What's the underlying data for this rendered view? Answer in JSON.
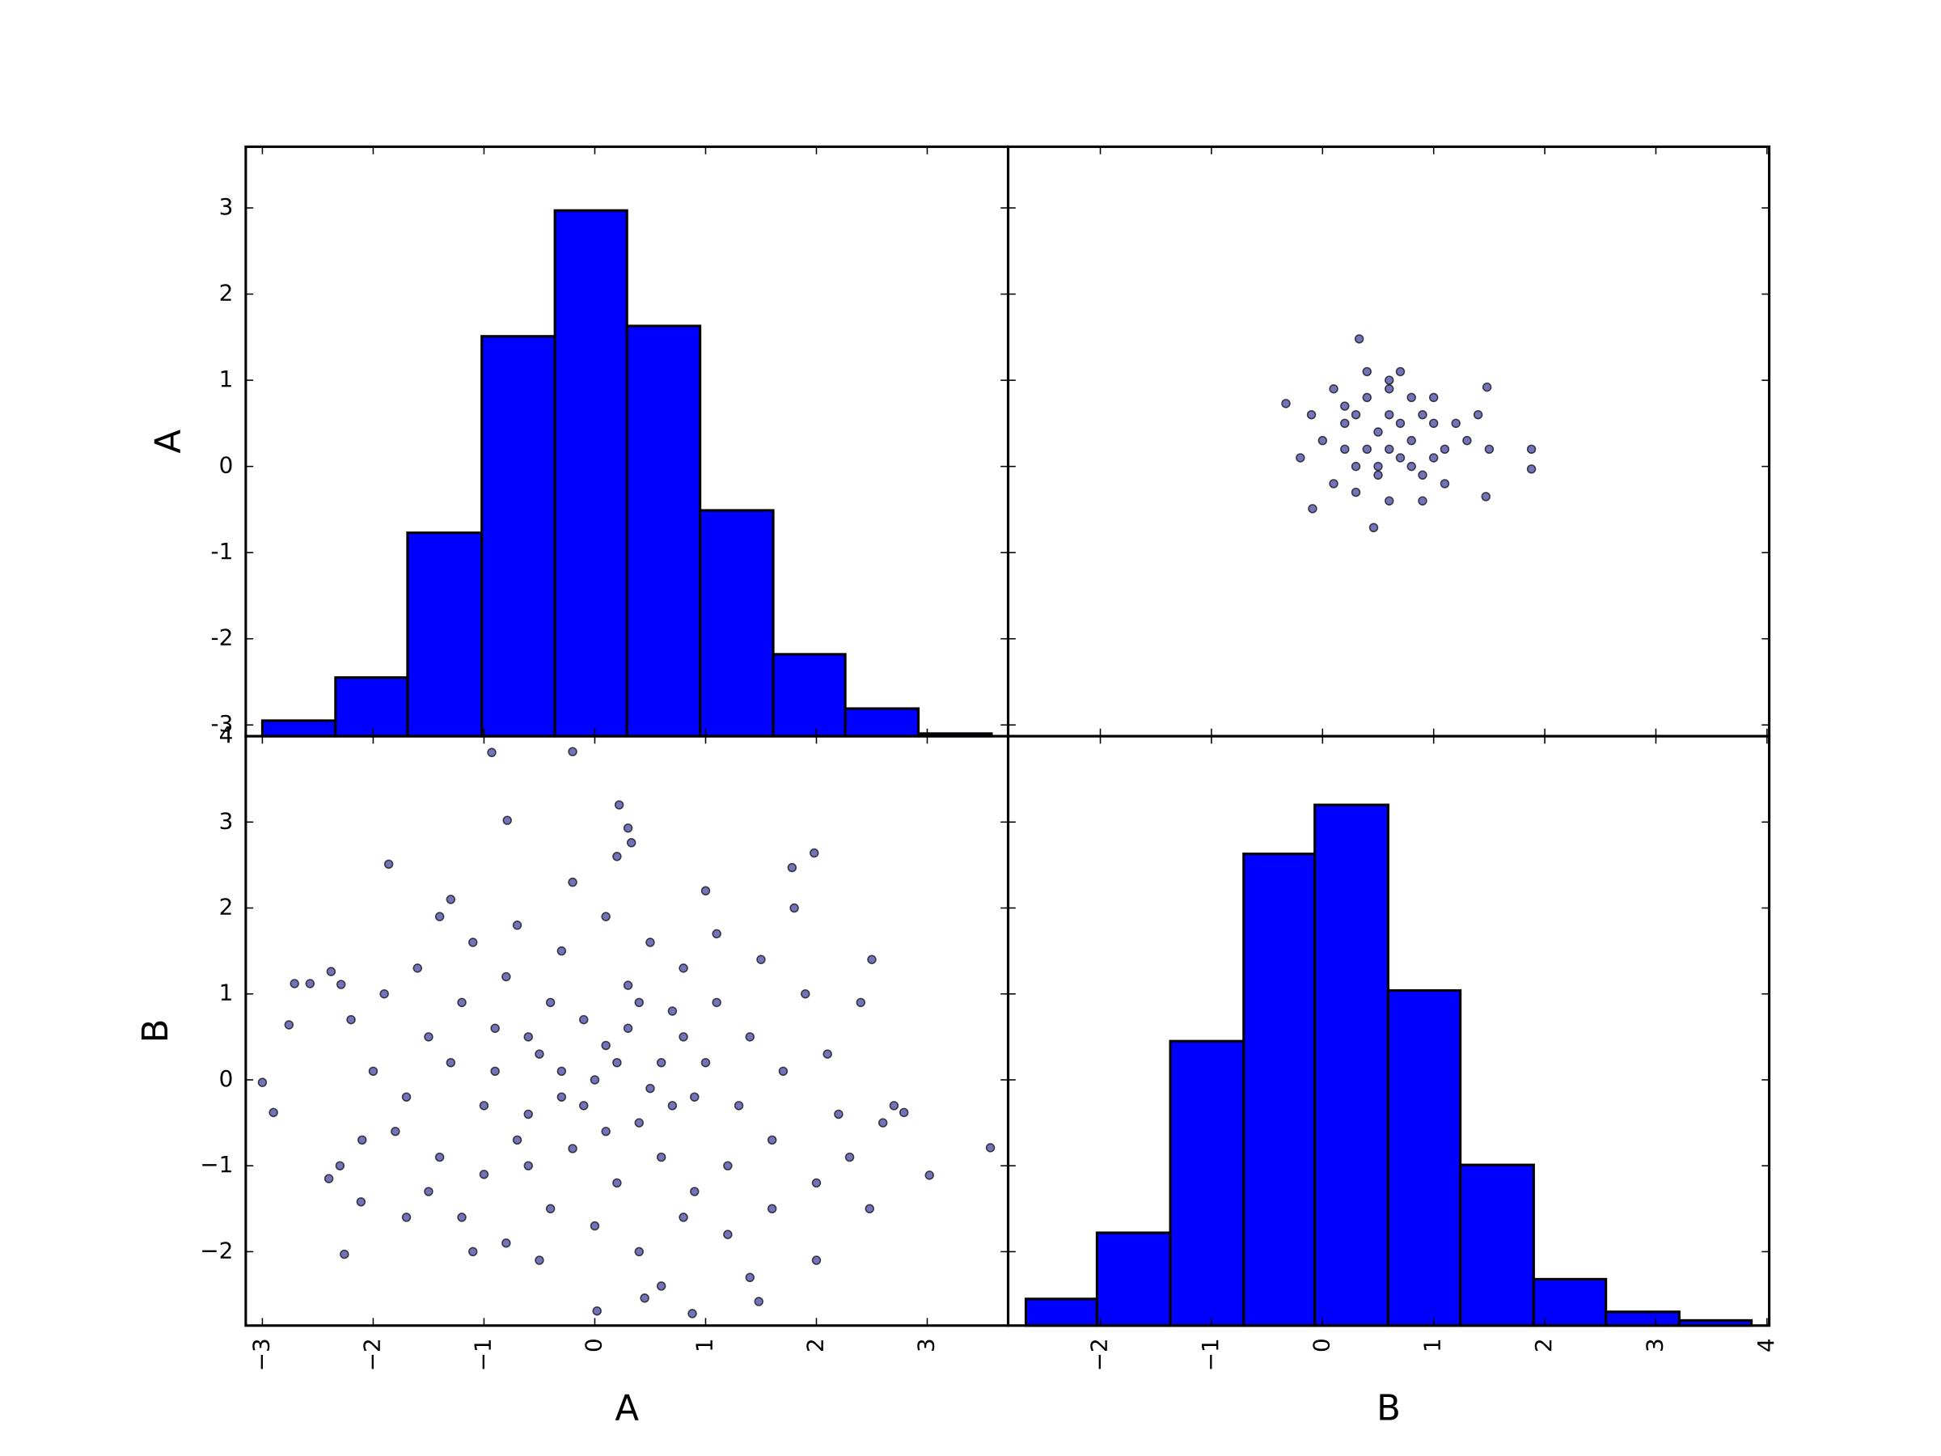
{
  "chart_data": [
    {
      "type": "histogram",
      "ylabel": "A",
      "color": "#0000ff",
      "bins": [
        -3.0,
        -2.34,
        -1.69,
        -1.02,
        -0.36,
        0.29,
        0.95,
        1.61,
        2.26,
        2.92,
        3.58
      ],
      "values": [
        -2.95,
        -2.45,
        -0.77,
        1.51,
        2.97,
        1.63,
        -0.51,
        -2.18,
        -2.81,
        -3.1
      ],
      "xlim": [
        -3.15,
        3.73
      ],
      "ylim": [
        -3.13,
        3.71
      ],
      "xticks": [
        -3,
        -2,
        -1,
        0,
        1,
        2,
        3
      ],
      "yticks": [
        -3,
        -2,
        -1,
        0,
        1,
        2,
        3
      ]
    },
    {
      "type": "scatter",
      "color": "#000080",
      "x": [
        0.33,
        1.88,
        1.88,
        0.46,
        -0.33,
        1.48,
        -0.09,
        1.47,
        0.2,
        0.4,
        0.6,
        0.8,
        1.0,
        0.3,
        0.5,
        0.7,
        0.9,
        1.1,
        0.1,
        0.4,
        0.6,
        0.8,
        1.0,
        0.0,
        0.2,
        0.5,
        0.7,
        1.2,
        1.3,
        1.4,
        0.1,
        0.3,
        0.6,
        0.9,
        1.1,
        0.4,
        0.7,
        -0.1,
        -0.2,
        1.5,
        0.6,
        0.9,
        0.3,
        0.5,
        0.8,
        1.0,
        0.2,
        0.6
      ],
      "y": [
        1.48,
        0.2,
        -0.03,
        -0.71,
        0.73,
        0.92,
        -0.49,
        -0.35,
        0.5,
        0.2,
        0.6,
        0.3,
        0.5,
        0.0,
        -0.1,
        0.1,
        -0.1,
        0.2,
        0.9,
        0.8,
        0.9,
        0.8,
        0.8,
        0.3,
        0.2,
        0.4,
        0.5,
        0.5,
        0.3,
        0.6,
        -0.2,
        -0.3,
        -0.4,
        -0.4,
        -0.2,
        1.1,
        1.1,
        0.6,
        0.1,
        0.2,
        0.2,
        0.6,
        0.6,
        0.0,
        0.0,
        0.1,
        0.7,
        1.0
      ],
      "xlim": [
        -2.83,
        4.02
      ],
      "ylim": [
        -3.13,
        3.71
      ],
      "xticks": [
        -2,
        -1,
        0,
        1,
        2,
        3,
        4
      ],
      "yticks": [
        -3,
        -2,
        -1,
        0,
        1,
        2,
        3
      ]
    },
    {
      "type": "scatter",
      "xlabel": "A",
      "ylabel": "B",
      "color": "#000080",
      "x": [
        -3.0,
        -2.9,
        -2.76,
        -2.71,
        -2.57,
        -2.38,
        -2.29,
        -2.26,
        -1.86,
        -0.79,
        -0.93,
        -0.2,
        0.22,
        0.3,
        0.33,
        1.98,
        1.78,
        3.57,
        3.02,
        2.79,
        0.02,
        0.88,
        1.48,
        0.45,
        2.48,
        -2.4,
        -2.11,
        -1.5,
        -1.2,
        -0.8,
        -0.5,
        -0.3,
        0.1,
        0.4,
        0.7,
        1.0,
        1.3,
        -1.8,
        -1.4,
        -1.0,
        -0.6,
        -0.2,
        0.2,
        0.6,
        0.9,
        1.2,
        1.6,
        -1.6,
        -1.1,
        -0.7,
        -0.3,
        0.1,
        0.5,
        0.8,
        1.1,
        1.5,
        1.9,
        -2.0,
        -1.7,
        -1.3,
        -0.9,
        -0.4,
        0.0,
        0.3,
        0.6,
        0.9,
        1.4,
        -1.2,
        -0.8,
        -0.4,
        0.0,
        0.4,
        0.8,
        1.2,
        1.6,
        2.0,
        2.2,
        -2.2,
        -1.9,
        -1.5,
        -1.0,
        -0.6,
        -0.1,
        0.3,
        0.7,
        1.1,
        1.7,
        2.1,
        2.4,
        2.5,
        2.3,
        2.6,
        2.0,
        1.8,
        1.0,
        -0.2,
        -1.3,
        -0.9,
        -0.6,
        -0.1,
        0.2,
        0.5,
        0.8,
        -0.3,
        0.4,
        -0.7,
        0.1,
        -1.4,
        -2.3,
        -2.1,
        2.7,
        -0.5,
        0.6,
        1.4,
        -1.7,
        -1.1,
        0.2
      ],
      "y": [
        -0.03,
        -0.38,
        0.64,
        1.12,
        1.12,
        1.26,
        1.11,
        -2.03,
        2.51,
        3.02,
        3.81,
        3.82,
        3.2,
        2.93,
        2.76,
        2.64,
        2.47,
        -0.79,
        -1.11,
        -0.38,
        -2.69,
        -2.72,
        -2.58,
        -2.54,
        -1.5,
        -1.15,
        -1.42,
        0.5,
        0.9,
        1.2,
        0.3,
        -0.2,
        0.4,
        -0.5,
        0.8,
        0.2,
        -0.3,
        -0.6,
        -0.9,
        -0.3,
        -1.0,
        -0.8,
        -1.2,
        -0.9,
        -1.3,
        -1.0,
        -0.7,
        1.3,
        1.6,
        1.8,
        1.5,
        1.9,
        1.6,
        1.3,
        1.7,
        1.4,
        1.0,
        0.1,
        -0.2,
        0.2,
        0.6,
        0.9,
        0.0,
        0.6,
        0.2,
        -0.2,
        0.5,
        -1.6,
        -1.9,
        -1.5,
        -1.7,
        -2.0,
        -1.6,
        -1.8,
        -1.5,
        -1.2,
        -0.4,
        0.7,
        1.0,
        -1.3,
        -1.1,
        -0.4,
        0.7,
        1.1,
        -0.3,
        0.9,
        0.1,
        0.3,
        0.9,
        1.4,
        -0.9,
        -0.5,
        -2.1,
        2.0,
        2.2,
        2.3,
        2.1,
        0.1,
        0.5,
        -0.3,
        0.2,
        -0.1,
        0.5,
        0.1,
        0.9,
        -0.7,
        -0.6,
        1.9,
        -1.0,
        -0.7,
        -0.3,
        -2.1,
        -2.4,
        -2.3,
        -1.6,
        -2.0,
        2.6
      ],
      "xlim": [
        -3.15,
        3.73
      ],
      "ylim": [
        -2.86,
        4.0
      ],
      "xticks": [
        {
          "value": -3,
          "label": "−3"
        },
        {
          "value": -2,
          "label": "−2"
        },
        {
          "value": -1,
          "label": "−1"
        },
        0,
        1,
        2,
        3
      ],
      "yticks": [
        {
          "value": -2,
          "label": "−2"
        },
        {
          "value": -1,
          "label": "−1"
        },
        0,
        1,
        2,
        3,
        4
      ]
    },
    {
      "type": "histogram",
      "xlabel": "B",
      "color": "#0000ff",
      "bins": [
        -2.67,
        -2.03,
        -1.37,
        -0.71,
        -0.07,
        0.59,
        1.24,
        1.9,
        2.55,
        3.21,
        3.86
      ],
      "values": [
        -2.55,
        -1.78,
        0.45,
        2.63,
        3.2,
        1.04,
        -0.99,
        -2.32,
        -2.7,
        -2.8
      ],
      "xlim": [
        -2.83,
        4.02
      ],
      "ylim": [
        -2.86,
        4.0
      ],
      "xticks": [
        {
          "value": -2,
          "label": "−2"
        },
        {
          "value": -1,
          "label": "−1"
        },
        0,
        1,
        2,
        3,
        4
      ],
      "yticks": [
        -2,
        -1,
        0,
        1,
        2,
        3,
        4
      ]
    }
  ]
}
